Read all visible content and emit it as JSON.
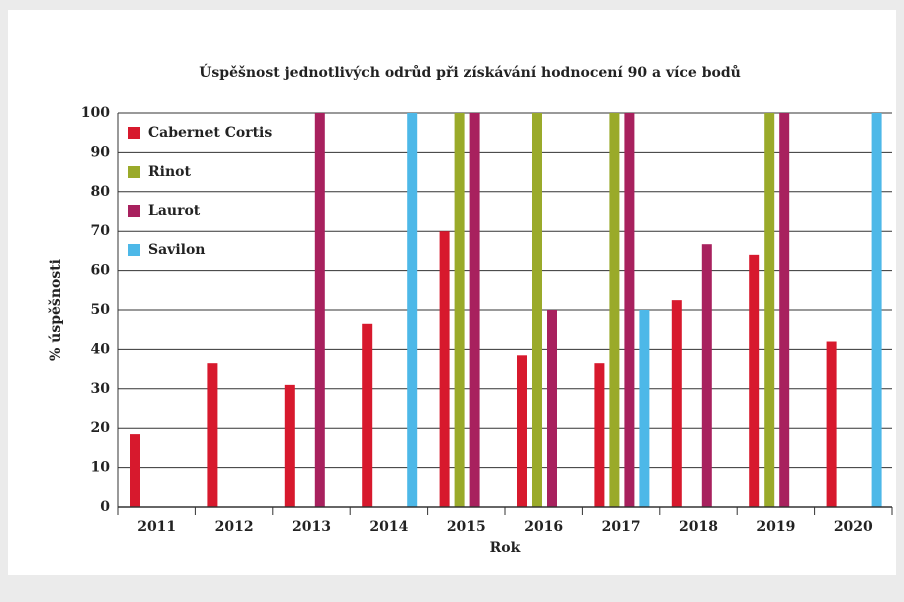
{
  "chart_data": {
    "type": "bar",
    "title": "Úspěšnost jednotlivých odrůd při získávání hodnocení 90 a více bodů",
    "xlabel": "Rok",
    "ylabel": "% úspěšnosti",
    "categories": [
      "2011",
      "2012",
      "2013",
      "2014",
      "2015",
      "2016",
      "2017",
      "2018",
      "2019",
      "2020"
    ],
    "series": [
      {
        "name": "Cabernet Cortis",
        "color": "#d7192d",
        "values": [
          18.5,
          36.5,
          31,
          46.5,
          70,
          38.5,
          36.5,
          52.5,
          64,
          42
        ]
      },
      {
        "name": "Rinot",
        "color": "#9aaa2a",
        "values": [
          null,
          null,
          null,
          null,
          100,
          100,
          100,
          null,
          100,
          null
        ]
      },
      {
        "name": "Laurot",
        "color": "#a8215e",
        "values": [
          null,
          null,
          100,
          null,
          100,
          50,
          100,
          66.7,
          100,
          null
        ]
      },
      {
        "name": "Savilon",
        "color": "#4db8e8",
        "values": [
          null,
          null,
          null,
          100,
          null,
          null,
          50,
          null,
          null,
          100
        ]
      }
    ],
    "ylim": [
      0,
      100
    ],
    "yticks": [
      0,
      10,
      20,
      30,
      40,
      50,
      60,
      70,
      80,
      90,
      100
    ],
    "grid": true,
    "legend": "top-left"
  }
}
